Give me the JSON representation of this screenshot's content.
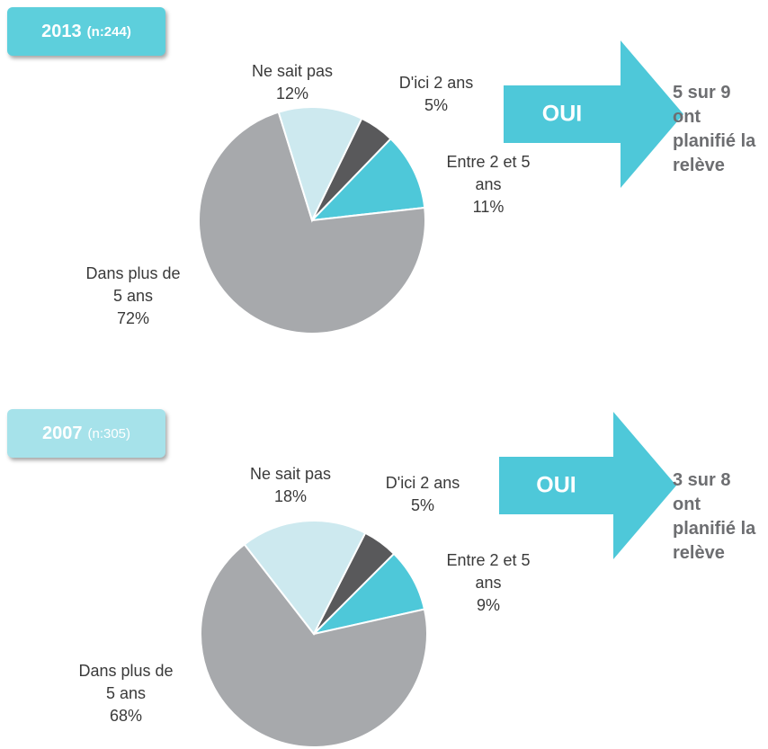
{
  "chart_data": [
    {
      "type": "pie",
      "title": "2013",
      "subtitle": "(n:244)",
      "categories": [
        "D'ici 2 ans",
        "Entre 2 et 5 ans",
        "Dans plus de 5 ans",
        "Ne sait pas"
      ],
      "values": [
        5,
        11,
        72,
        12
      ],
      "value_labels": [
        "5%",
        "11%",
        "72%",
        "12%"
      ],
      "colors": [
        "#59595b",
        "#4ec8d9",
        "#a7a9ac",
        "#cde9ef"
      ],
      "arrow_label": "OUI",
      "annotation": "5 sur 9 ont planifié la relève"
    },
    {
      "type": "pie",
      "title": "2007",
      "subtitle": "(n:305)",
      "categories": [
        "D'ici 2 ans",
        "Entre 2 et 5 ans",
        "Dans plus de 5 ans",
        "Ne sait pas"
      ],
      "values": [
        5,
        9,
        68,
        18
      ],
      "value_labels": [
        "5%",
        "9%",
        "68%",
        "18%"
      ],
      "colors": [
        "#59595b",
        "#4ec8d9",
        "#a7a9ac",
        "#cde9ef"
      ],
      "arrow_label": "OUI",
      "annotation": "3 sur 8 ont planifié la relève"
    }
  ]
}
